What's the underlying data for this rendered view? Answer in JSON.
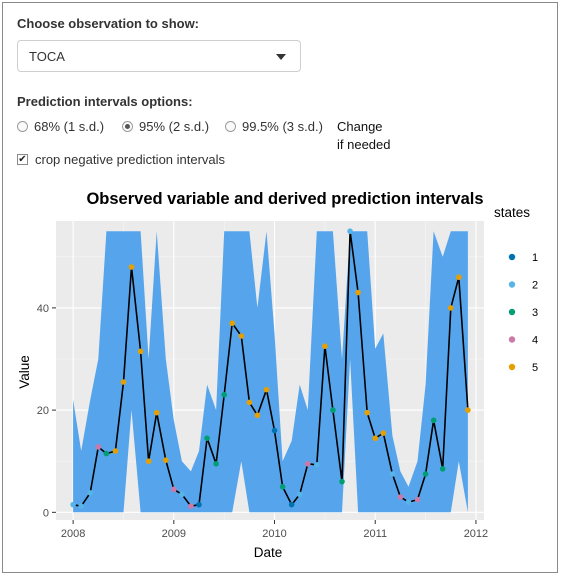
{
  "controls": {
    "observation_label": "Choose observation to show:",
    "observation_value": "TOCA",
    "intervals_label": "Prediction intervals options:",
    "radio_options": [
      "68% (1 s.d.)",
      "95% (2 s.d.)",
      "99.5% (3 s.d.)"
    ],
    "selected_option": "95% (2 s.d.)",
    "note_line1": "Change",
    "note_line2": "if needed",
    "crop_label": "crop negative prediction intervals",
    "crop_checked": true
  },
  "colors": {
    "band": "#56a5ec",
    "panel": "#ebebeb",
    "line": "#000000",
    "states": {
      "1": "#0072B2",
      "2": "#56B4E9",
      "3": "#009E73",
      "4": "#CC79A7",
      "5": "#E69F00"
    }
  },
  "chart_data": {
    "type": "line",
    "title": "Observed variable and derived prediction intervals",
    "xlabel": "Date",
    "ylabel": "Value",
    "x_ticks": [
      "2008",
      "2009",
      "2010",
      "2011",
      "2012"
    ],
    "y_ticks": [
      "0",
      "20",
      "40"
    ],
    "xlim": [
      2007.83,
      2012.08
    ],
    "ylim": [
      -1.5,
      57
    ],
    "grid": true,
    "legend_title": "states",
    "legend_position": "right",
    "legend_entries": [
      "1",
      "2",
      "3",
      "4",
      "5"
    ],
    "series": [
      {
        "x": [
          2008.0,
          2008.08,
          2008.17,
          2008.25,
          2008.33,
          2008.42,
          2008.5,
          2008.58,
          2008.67,
          2008.75,
          2008.83,
          2008.92,
          2009.0,
          2009.08,
          2009.17,
          2009.25,
          2009.33,
          2009.42,
          2009.5,
          2009.58,
          2009.67,
          2009.75,
          2009.83,
          2009.92,
          2010.0,
          2010.08,
          2010.17,
          2010.25,
          2010.33,
          2010.42,
          2010.5,
          2010.58,
          2010.67,
          2010.75,
          2010.83,
          2010.92,
          2011.0,
          2011.08,
          2011.17,
          2011.25,
          2011.33,
          2011.42,
          2011.5,
          2011.58,
          2011.67,
          2011.75,
          2011.83,
          2011.92
        ],
        "y": [
          1.5,
          1.2,
          3.8,
          12.8,
          11.5,
          12.0,
          25.5,
          48.0,
          31.5,
          10.0,
          19.5,
          10.2,
          4.5,
          3.5,
          1.2,
          1.5,
          14.5,
          9.5,
          23.0,
          37.0,
          34.5,
          21.5,
          19.0,
          24.0,
          16.0,
          5.0,
          1.5,
          3.5,
          9.5,
          9.3,
          32.5,
          20.0,
          6.0,
          55.0,
          43.0,
          19.5,
          14.5,
          15.5,
          7.5,
          3.0,
          2.0,
          2.5,
          7.5,
          18.0,
          8.5,
          40.0,
          46.0,
          20.0
        ],
        "states": [
          2,
          2,
          2,
          4,
          3,
          5,
          5,
          5,
          5,
          5,
          5,
          5,
          4,
          2,
          4,
          1,
          3,
          3,
          3,
          5,
          5,
          5,
          5,
          5,
          1,
          3,
          1,
          2,
          4,
          2,
          5,
          3,
          3,
          2,
          5,
          5,
          5,
          5,
          2,
          4,
          2,
          4,
          3,
          3,
          3,
          5,
          5,
          5
        ],
        "lower": [
          0,
          0,
          0,
          0,
          0,
          0,
          0,
          20,
          0,
          0,
          0,
          0,
          0,
          0,
          0,
          0,
          0,
          0,
          0,
          0,
          10,
          0,
          0,
          0,
          0,
          0,
          0,
          0,
          0,
          0,
          0,
          0,
          0,
          30,
          0,
          0,
          0,
          0,
          0,
          0,
          0,
          0,
          0,
          0,
          0,
          0,
          10,
          0
        ],
        "upper": [
          22.0,
          12.0,
          22.0,
          30.0,
          55.0,
          55.0,
          55.0,
          55.0,
          55.0,
          30.0,
          55.0,
          30.0,
          18.0,
          10.0,
          8.0,
          12.0,
          25.0,
          20.0,
          55.0,
          55.0,
          55.0,
          55.0,
          40.0,
          55.0,
          35.0,
          10.0,
          14.0,
          25.0,
          20.0,
          55.0,
          55.0,
          55.0,
          30.0,
          55.0,
          55.0,
          55.0,
          32.0,
          35.0,
          15.0,
          8.0,
          5.0,
          10.0,
          25.0,
          55.0,
          50.0,
          55.0,
          55.0,
          55.0
        ]
      }
    ]
  }
}
